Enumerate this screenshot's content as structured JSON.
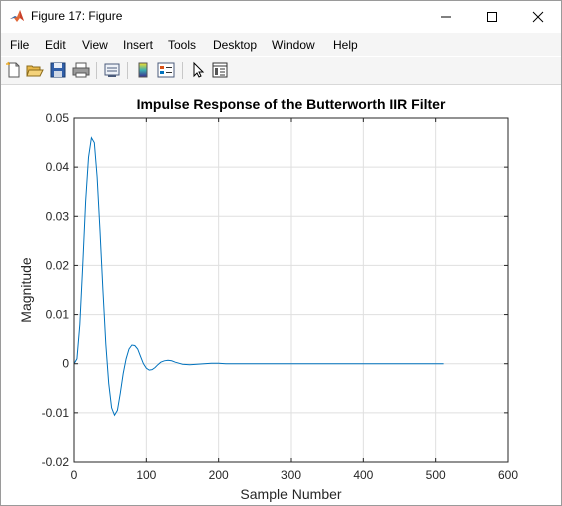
{
  "window": {
    "title": "Figure 17: Figure"
  },
  "menu": {
    "items": [
      "File",
      "Edit",
      "View",
      "Insert",
      "Tools",
      "Desktop",
      "Window",
      "Help"
    ]
  },
  "toolbar": {
    "buttons": [
      {
        "name": "new-figure-icon"
      },
      {
        "name": "open-file-icon"
      },
      {
        "name": "save-figure-icon"
      },
      {
        "name": "print-figure-icon"
      },
      {
        "name": "link-plot-icon"
      },
      {
        "name": "insert-colorbar-icon"
      },
      {
        "name": "insert-legend-icon"
      },
      {
        "name": "edit-plot-pointer-icon"
      },
      {
        "name": "property-inspector-icon"
      }
    ]
  },
  "chart_data": {
    "type": "line",
    "title": "Impulse Response of the Butterworth IIR Filter",
    "xlabel": "Sample Number",
    "ylabel": "Magnitude",
    "xlim": [
      0,
      600
    ],
    "ylim": [
      -0.02,
      0.05
    ],
    "xticks": [
      0,
      100,
      200,
      300,
      400,
      500,
      600
    ],
    "yticks": [
      -0.02,
      -0.01,
      0,
      0.01,
      0.02,
      0.03,
      0.04,
      0.05
    ],
    "xtick_labels": [
      "0",
      "100",
      "200",
      "300",
      "400",
      "500",
      "600"
    ],
    "ytick_labels": [
      "-0.02",
      "-0.01",
      "0",
      "0.01",
      "0.02",
      "0.03",
      "0.04",
      "0.05"
    ],
    "grid": true,
    "line_color": "#0072BD",
    "series": [
      {
        "x": [
          0,
          4,
          8,
          12,
          16,
          20,
          24,
          28,
          32,
          36,
          40,
          44,
          48,
          52,
          56,
          60,
          64,
          68,
          72,
          76,
          80,
          84,
          88,
          92,
          96,
          100,
          104,
          108,
          112,
          116,
          120,
          125,
          130,
          135,
          140,
          145,
          150,
          160,
          170,
          180,
          190,
          200,
          210,
          220,
          240,
          260,
          300,
          350,
          400,
          450,
          511
        ],
        "y": [
          0.0,
          0.001,
          0.008,
          0.02,
          0.033,
          0.042,
          0.046,
          0.045,
          0.038,
          0.027,
          0.015,
          0.004,
          -0.004,
          -0.009,
          -0.0105,
          -0.0095,
          -0.006,
          -0.002,
          0.001,
          0.003,
          0.0038,
          0.0037,
          0.003,
          0.0015,
          0.0,
          -0.0009,
          -0.0013,
          -0.0012,
          -0.0008,
          -0.0002,
          0.0003,
          0.0006,
          0.0007,
          0.0006,
          0.0003,
          0.0001,
          -0.0001,
          -0.0002,
          -0.0001,
          0.0,
          0.0001,
          0.0001,
          0.0,
          0.0,
          0.0,
          0.0,
          0.0,
          0.0,
          0.0,
          0.0,
          0.0
        ]
      }
    ]
  }
}
